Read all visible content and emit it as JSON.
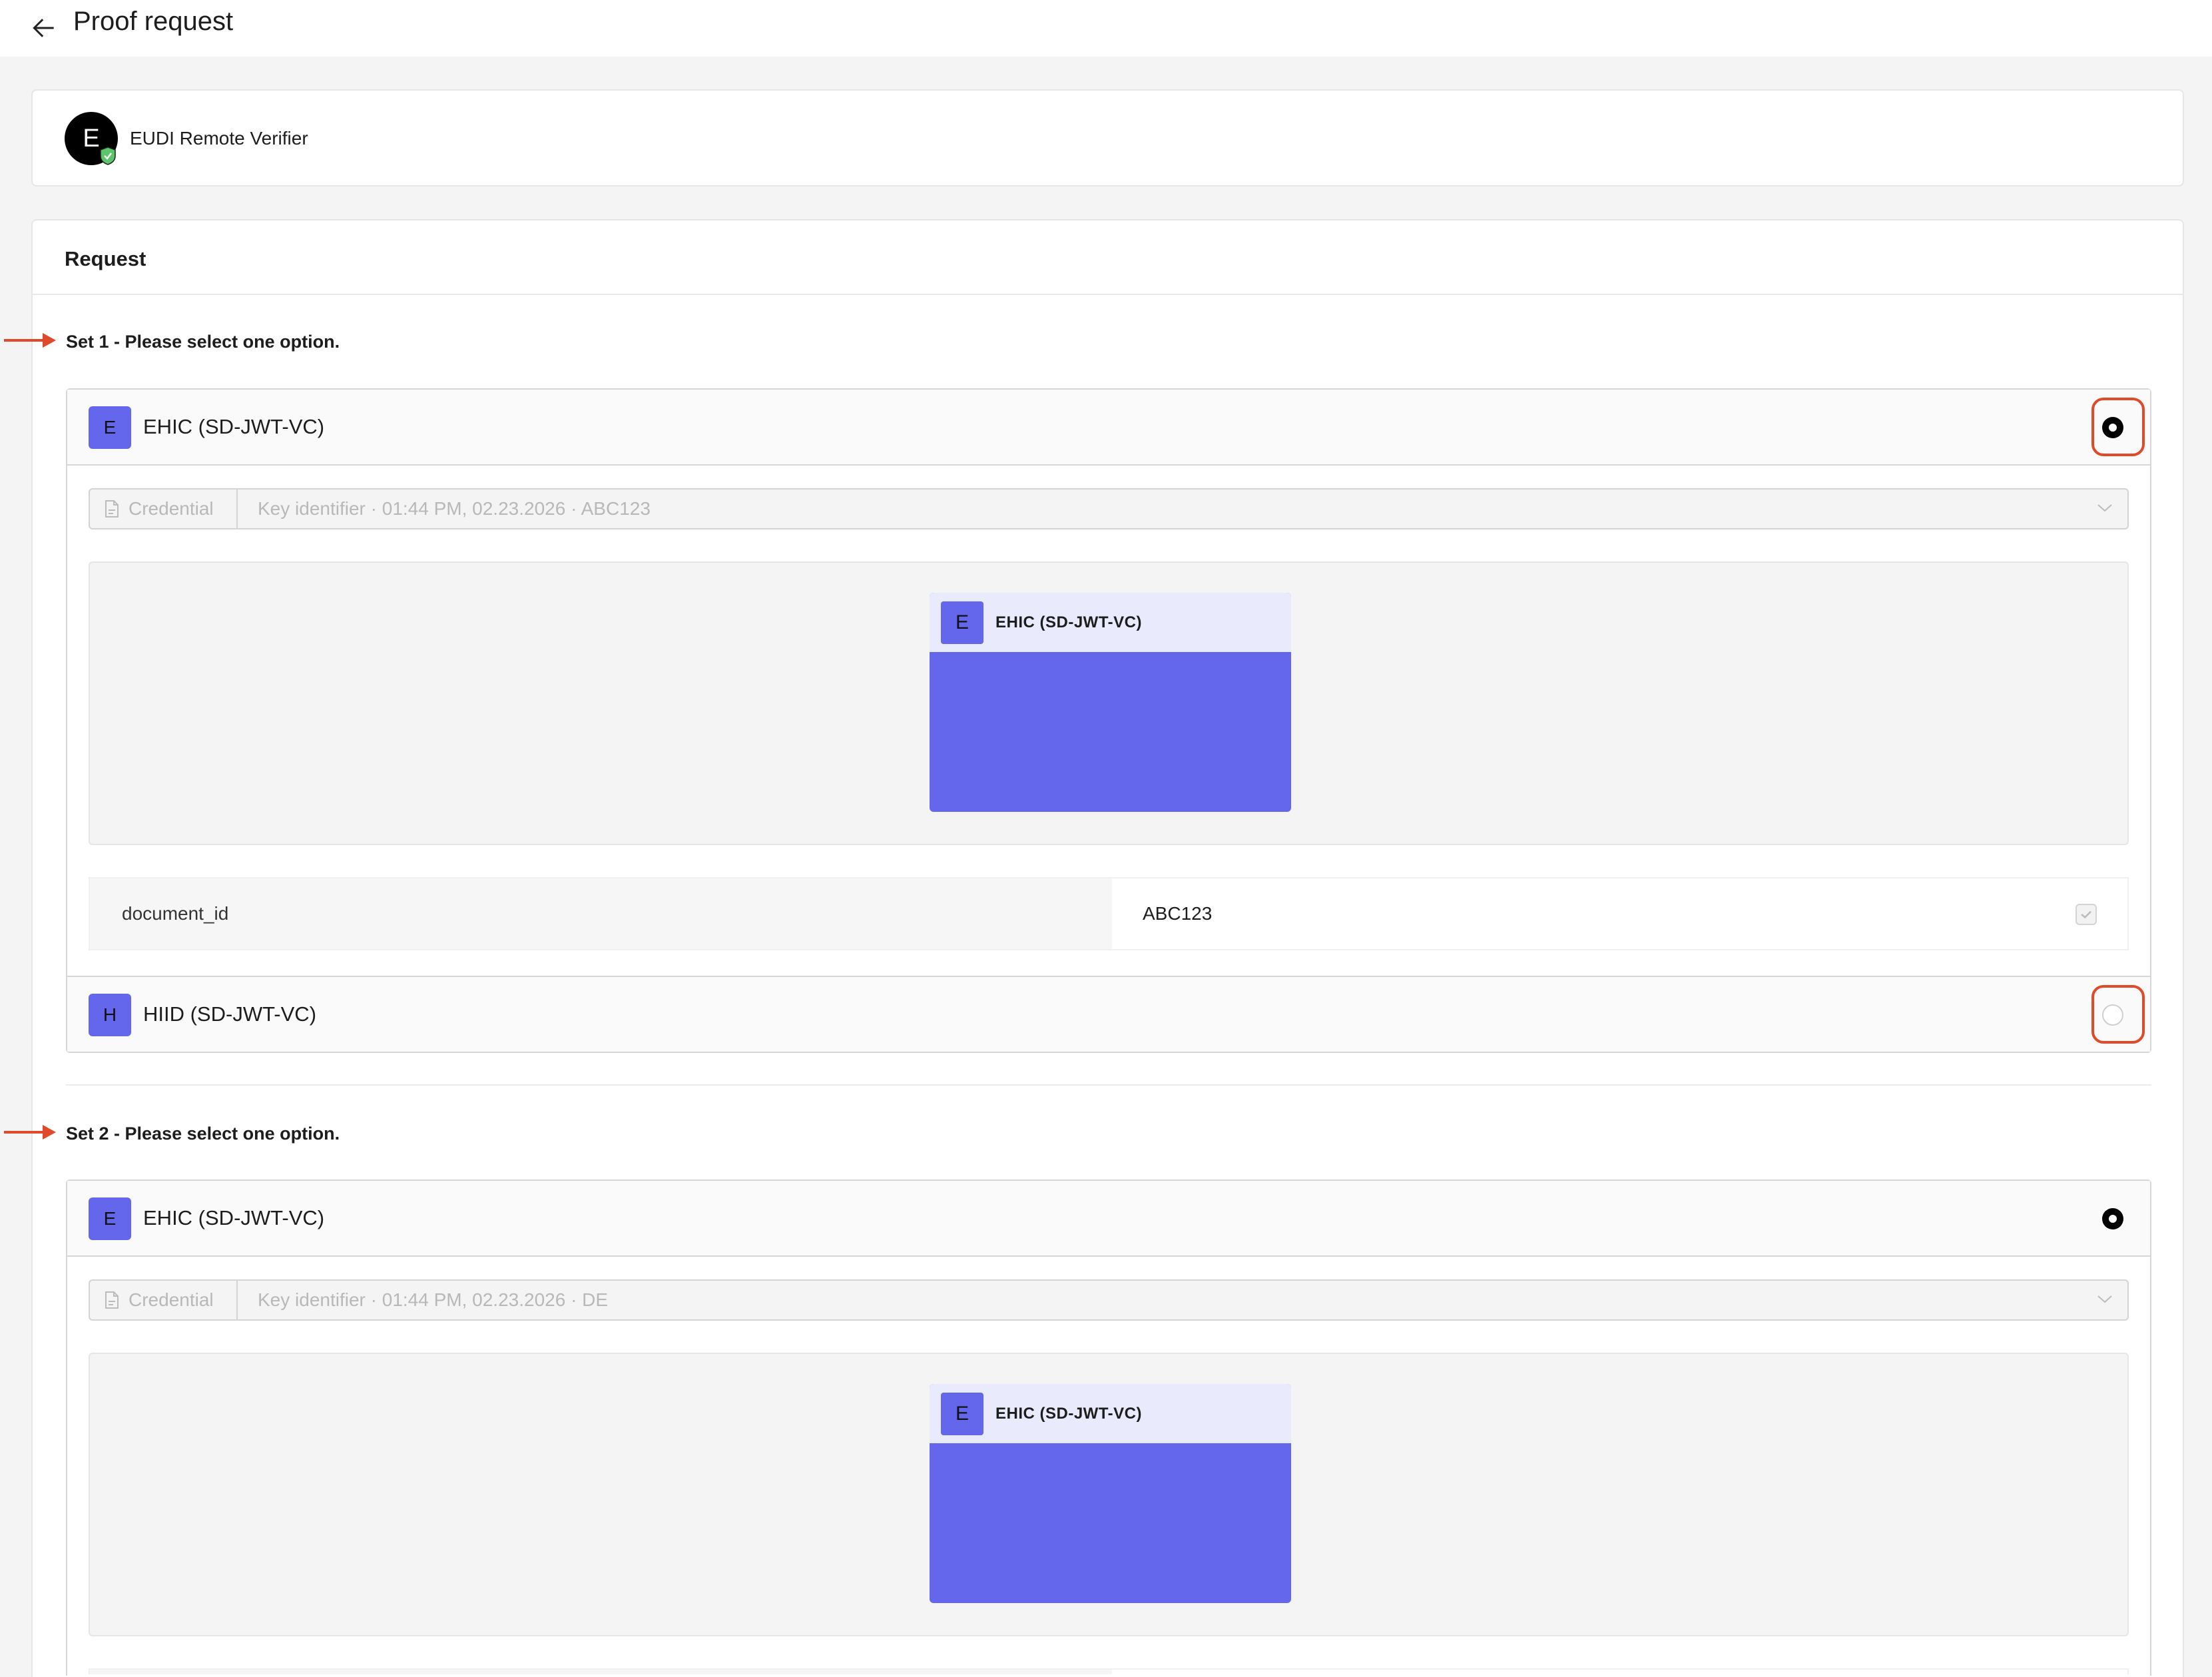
{
  "header": {
    "title": "Proof request",
    "back_icon": "arrow-left-icon"
  },
  "verifier": {
    "initial": "E",
    "name": "EUDI Remote Verifier",
    "verified_icon": "shield-check-icon"
  },
  "request": {
    "title": "Request",
    "sets": [
      {
        "label": "Set 1 - Please select one option.",
        "options": [
          {
            "badge": "E",
            "name": "EHIC (SD-JWT-VC)",
            "selected": true,
            "expanded": true,
            "credential_label": "Credential",
            "credential_value": "Key identifier · 01:44 PM, 02.23.2026 · ABC123",
            "card_badge": "E",
            "card_name": "EHIC (SD-JWT-VC)",
            "attributes": [
              {
                "key": "document_id",
                "value": "ABC123",
                "checked": true
              }
            ]
          },
          {
            "badge": "H",
            "name": "HIID (SD-JWT-VC)",
            "selected": false,
            "expanded": false
          }
        ]
      },
      {
        "label": "Set 2 - Please select one option.",
        "options": [
          {
            "badge": "E",
            "name": "EHIC (SD-JWT-VC)",
            "selected": true,
            "expanded": true,
            "credential_label": "Credential",
            "credential_value": "Key identifier · 01:44 PM, 02.23.2026 · DE",
            "card_badge": "E",
            "card_name": "EHIC (SD-JWT-VC)"
          }
        ]
      }
    ]
  },
  "colors": {
    "accent": "#6466ec",
    "card_header": "#e9eafc",
    "annotation": "#e04a2a",
    "background": "#f4f4f4"
  }
}
